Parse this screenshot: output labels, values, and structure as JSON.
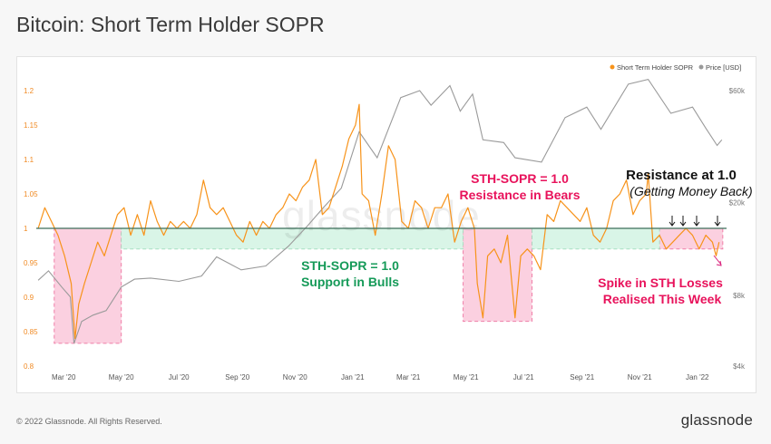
{
  "title": "Bitcoin: Short Term Holder SOPR",
  "footer": {
    "copyright": "© 2022 Glassnode. All Rights Reserved.",
    "brand": "glassnode"
  },
  "watermark": "glassnode",
  "colors": {
    "sopr": "#f7931a",
    "price": "#9a9a9a",
    "baseline": "#3c6e5a",
    "green_zone": "#d9f5e7",
    "pink_zone": "#fbd0e0",
    "pink_border": "#ef7fa8",
    "pink_text": "#e8125b",
    "green_text": "#159a58"
  },
  "chart_data": {
    "type": "line",
    "legend": {
      "position": "top-right",
      "items": [
        "Short Term Holder SOPR",
        "Price [USD]"
      ]
    },
    "x_ticks": [
      "Mar '20",
      "May '20",
      "Jul '20",
      "Sep '20",
      "Nov '20",
      "Jan '21",
      "Mar '21",
      "May '21",
      "Jul '21",
      "Sep '21",
      "Nov '21",
      "Jan '22"
    ],
    "x_range": [
      "2020-02-01",
      "2022-02-01"
    ],
    "y_left": {
      "ticks": [
        "0.8",
        "0.85",
        "0.9",
        "0.95",
        "1",
        "1.05",
        "1.1",
        "1.15",
        "1.2"
      ],
      "range": [
        0.8,
        1.2
      ]
    },
    "y_right": {
      "scale": "log",
      "ticks": [
        "$4k",
        "$8k",
        "$20k",
        "$60k"
      ],
      "range": [
        4000,
        60000
      ]
    },
    "series": [
      {
        "name": "Short Term Holder SOPR",
        "axis": "left",
        "points": [
          [
            "2020-02-03",
            1.0
          ],
          [
            "2020-02-10",
            1.03
          ],
          [
            "2020-02-17",
            1.01
          ],
          [
            "2020-02-24",
            0.99
          ],
          [
            "2020-03-02",
            0.96
          ],
          [
            "2020-03-09",
            0.92
          ],
          [
            "2020-03-13",
            0.84
          ],
          [
            "2020-03-17",
            0.89
          ],
          [
            "2020-03-23",
            0.92
          ],
          [
            "2020-03-30",
            0.95
          ],
          [
            "2020-04-06",
            0.98
          ],
          [
            "2020-04-13",
            0.96
          ],
          [
            "2020-04-20",
            0.99
          ],
          [
            "2020-04-27",
            1.02
          ],
          [
            "2020-05-04",
            1.03
          ],
          [
            "2020-05-11",
            0.99
          ],
          [
            "2020-05-18",
            1.02
          ],
          [
            "2020-05-25",
            0.99
          ],
          [
            "2020-06-01",
            1.04
          ],
          [
            "2020-06-08",
            1.01
          ],
          [
            "2020-06-15",
            0.99
          ],
          [
            "2020-06-22",
            1.01
          ],
          [
            "2020-06-29",
            1.0
          ],
          [
            "2020-07-06",
            1.01
          ],
          [
            "2020-07-13",
            1.0
          ],
          [
            "2020-07-20",
            1.02
          ],
          [
            "2020-07-27",
            1.07
          ],
          [
            "2020-08-03",
            1.03
          ],
          [
            "2020-08-10",
            1.02
          ],
          [
            "2020-08-17",
            1.03
          ],
          [
            "2020-08-24",
            1.01
          ],
          [
            "2020-08-31",
            0.99
          ],
          [
            "2020-09-07",
            0.98
          ],
          [
            "2020-09-14",
            1.01
          ],
          [
            "2020-09-21",
            0.99
          ],
          [
            "2020-09-28",
            1.01
          ],
          [
            "2020-10-05",
            1.0
          ],
          [
            "2020-10-12",
            1.02
          ],
          [
            "2020-10-19",
            1.03
          ],
          [
            "2020-10-26",
            1.05
          ],
          [
            "2020-11-02",
            1.04
          ],
          [
            "2020-11-09",
            1.06
          ],
          [
            "2020-11-16",
            1.07
          ],
          [
            "2020-11-23",
            1.1
          ],
          [
            "2020-11-30",
            1.02
          ],
          [
            "2020-12-07",
            1.03
          ],
          [
            "2020-12-14",
            1.06
          ],
          [
            "2020-12-21",
            1.09
          ],
          [
            "2020-12-28",
            1.13
          ],
          [
            "2021-01-04",
            1.15
          ],
          [
            "2021-01-08",
            1.18
          ],
          [
            "2021-01-11",
            1.05
          ],
          [
            "2021-01-18",
            1.04
          ],
          [
            "2021-01-25",
            0.99
          ],
          [
            "2021-02-01",
            1.05
          ],
          [
            "2021-02-08",
            1.12
          ],
          [
            "2021-02-15",
            1.1
          ],
          [
            "2021-02-22",
            1.01
          ],
          [
            "2021-03-01",
            1.0
          ],
          [
            "2021-03-08",
            1.04
          ],
          [
            "2021-03-15",
            1.03
          ],
          [
            "2021-03-22",
            1.0
          ],
          [
            "2021-03-29",
            1.03
          ],
          [
            "2021-04-05",
            1.03
          ],
          [
            "2021-04-12",
            1.05
          ],
          [
            "2021-04-19",
            0.98
          ],
          [
            "2021-04-26",
            1.01
          ],
          [
            "2021-05-03",
            1.03
          ],
          [
            "2021-05-10",
            1.0
          ],
          [
            "2021-05-13",
            0.92
          ],
          [
            "2021-05-19",
            0.87
          ],
          [
            "2021-05-24",
            0.96
          ],
          [
            "2021-05-31",
            0.97
          ],
          [
            "2021-06-07",
            0.95
          ],
          [
            "2021-06-14",
            0.99
          ],
          [
            "2021-06-18",
            0.93
          ],
          [
            "2021-06-22",
            0.87
          ],
          [
            "2021-06-28",
            0.96
          ],
          [
            "2021-07-05",
            0.97
          ],
          [
            "2021-07-12",
            0.96
          ],
          [
            "2021-07-19",
            0.94
          ],
          [
            "2021-07-26",
            1.02
          ],
          [
            "2021-08-02",
            1.01
          ],
          [
            "2021-08-09",
            1.04
          ],
          [
            "2021-08-16",
            1.03
          ],
          [
            "2021-08-23",
            1.02
          ],
          [
            "2021-08-30",
            1.01
          ],
          [
            "2021-09-06",
            1.03
          ],
          [
            "2021-09-13",
            0.99
          ],
          [
            "2021-09-20",
            0.98
          ],
          [
            "2021-09-27",
            1.0
          ],
          [
            "2021-10-04",
            1.04
          ],
          [
            "2021-10-11",
            1.05
          ],
          [
            "2021-10-18",
            1.07
          ],
          [
            "2021-10-25",
            1.02
          ],
          [
            "2021-11-01",
            1.04
          ],
          [
            "2021-11-08",
            1.05
          ],
          [
            "2021-11-10",
            1.08
          ],
          [
            "2021-11-15",
            0.98
          ],
          [
            "2021-11-22",
            0.99
          ],
          [
            "2021-11-29",
            0.97
          ],
          [
            "2021-12-06",
            0.98
          ],
          [
            "2021-12-13",
            0.99
          ],
          [
            "2021-12-20",
            1.0
          ],
          [
            "2021-12-27",
            0.99
          ],
          [
            "2022-01-03",
            0.97
          ],
          [
            "2022-01-10",
            0.99
          ],
          [
            "2022-01-17",
            0.98
          ],
          [
            "2022-01-21",
            0.96
          ],
          [
            "2022-01-24",
            0.98
          ]
        ]
      },
      {
        "name": "Price [USD]",
        "axis": "right",
        "points": [
          [
            "2020-02-03",
            9300
          ],
          [
            "2020-02-14",
            10200
          ],
          [
            "2020-02-28",
            8700
          ],
          [
            "2020-03-08",
            7900
          ],
          [
            "2020-03-12",
            5000
          ],
          [
            "2020-03-20",
            6200
          ],
          [
            "2020-04-01",
            6600
          ],
          [
            "2020-04-15",
            6900
          ],
          [
            "2020-05-01",
            8700
          ],
          [
            "2020-05-15",
            9400
          ],
          [
            "2020-06-01",
            9500
          ],
          [
            "2020-07-01",
            9200
          ],
          [
            "2020-07-25",
            9700
          ],
          [
            "2020-08-10",
            11700
          ],
          [
            "2020-09-05",
            10300
          ],
          [
            "2020-10-01",
            10700
          ],
          [
            "2020-10-25",
            13000
          ],
          [
            "2020-11-15",
            16000
          ],
          [
            "2020-12-01",
            19000
          ],
          [
            "2020-12-20",
            23000
          ],
          [
            "2021-01-08",
            40000
          ],
          [
            "2021-01-27",
            31000
          ],
          [
            "2021-02-21",
            56000
          ],
          [
            "2021-03-13",
            60000
          ],
          [
            "2021-03-25",
            52000
          ],
          [
            "2021-04-14",
            63000
          ],
          [
            "2021-04-25",
            49000
          ],
          [
            "2021-05-08",
            58000
          ],
          [
            "2021-05-19",
            37000
          ],
          [
            "2021-06-10",
            36000
          ],
          [
            "2021-06-22",
            31000
          ],
          [
            "2021-07-20",
            29700
          ],
          [
            "2021-08-14",
            46000
          ],
          [
            "2021-09-06",
            51000
          ],
          [
            "2021-09-21",
            41000
          ],
          [
            "2021-10-20",
            64000
          ],
          [
            "2021-11-10",
            67000
          ],
          [
            "2021-12-04",
            48000
          ],
          [
            "2021-12-27",
            51000
          ],
          [
            "2022-01-10",
            41500
          ],
          [
            "2022-01-22",
            35000
          ],
          [
            "2022-01-27",
            37000
          ]
        ]
      }
    ]
  },
  "zones": [
    {
      "type": "pink",
      "from": "2020-02-20",
      "to": "2020-05-01",
      "ymin": 0.833,
      "ymax": 1.0
    },
    {
      "type": "pink",
      "from": "2021-04-28",
      "to": "2021-07-10",
      "ymin": 0.865,
      "ymax": 1.0
    },
    {
      "type": "pink",
      "from": "2021-11-22",
      "to": "2022-01-28",
      "ymin": 0.97,
      "ymax": 1.0
    },
    {
      "type": "green",
      "from": "2020-05-01",
      "to": "2021-04-28",
      "ymin": 0.97,
      "ymax": 1.0
    },
    {
      "type": "green",
      "from": "2021-07-10",
      "to": "2021-11-22",
      "ymin": 0.97,
      "ymax": 1.0
    }
  ],
  "annotations": {
    "bulls": [
      "STH-SOPR = 1.0",
      "Support in Bulls"
    ],
    "bears": [
      "STH-SOPR = 1.0",
      "Resistance in Bears"
    ],
    "resistance_title": "Resistance at 1.0",
    "resistance_sub": "(Getting Money Back)",
    "losses": [
      "Spike in STH Losses",
      "Realised This Week"
    ]
  }
}
